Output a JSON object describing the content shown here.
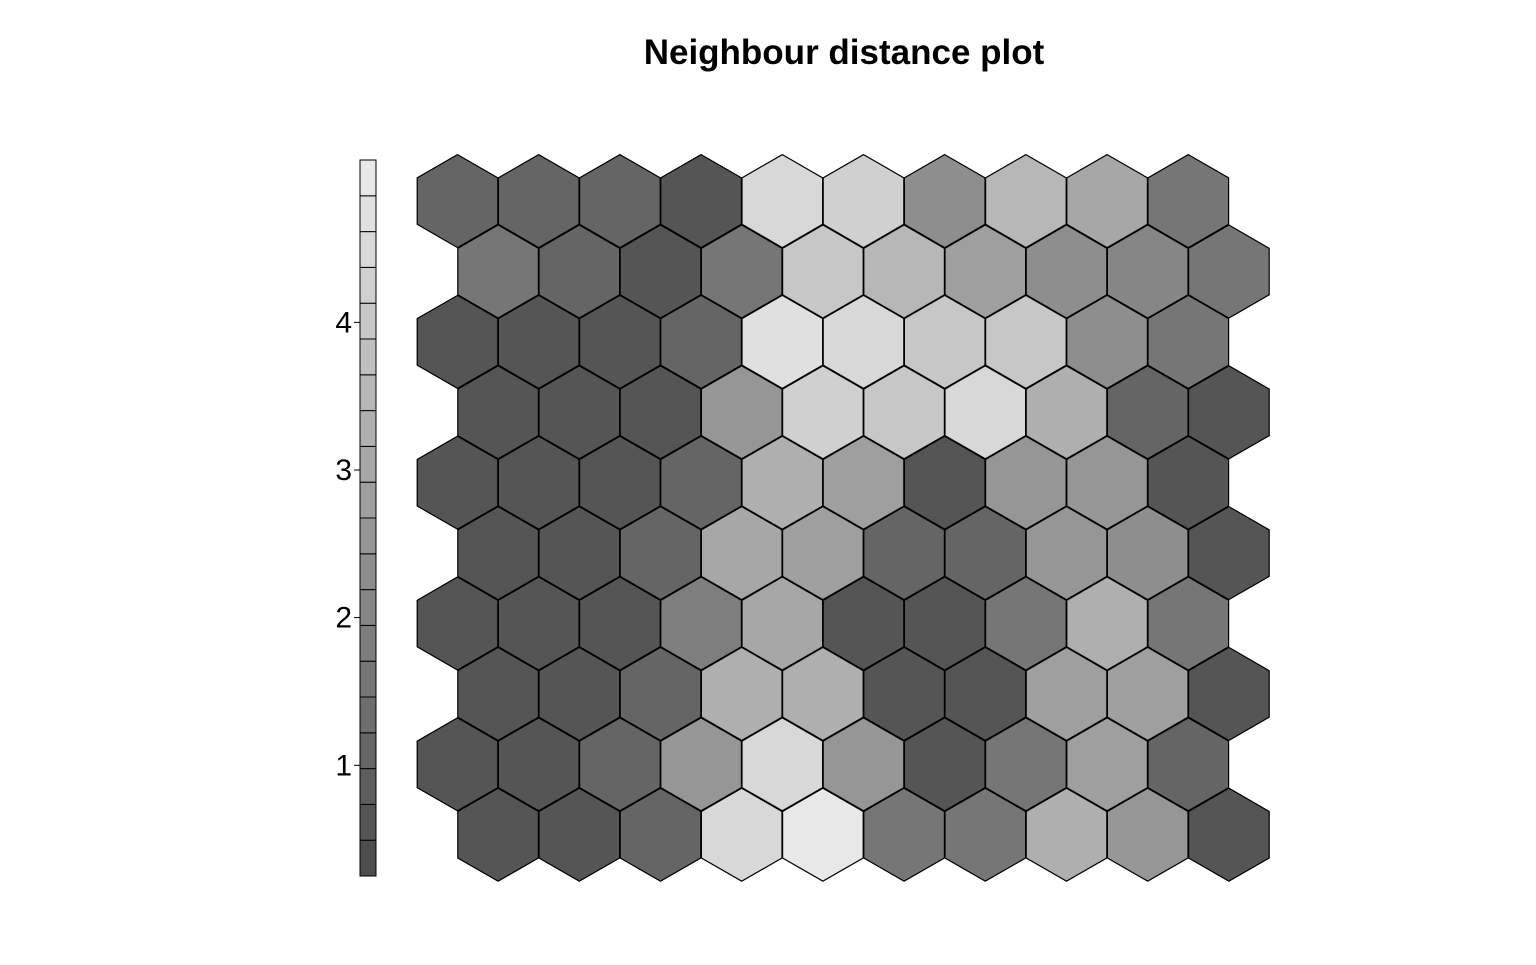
{
  "chart_data": {
    "type": "heatmap",
    "subtype": "hexagonal-som-grid",
    "title": "Neighbour distance plot",
    "grid": {
      "rows": 10,
      "cols": 10,
      "topology": "hexagonal"
    },
    "palette": "grey (dark = low, light = high)",
    "rows_top_to_bottom": [
      [
        1.2,
        1.2,
        1.2,
        0.6,
        4.5,
        4.2,
        2.3,
        3.5,
        3.0,
        1.6
      ],
      [
        1.6,
        1.2,
        0.6,
        1.6,
        4.0,
        3.6,
        2.9,
        2.4,
        2.1,
        1.6
      ],
      [
        0.6,
        0.6,
        0.6,
        1.2,
        4.8,
        4.6,
        4.0,
        4.0,
        2.4,
        1.6
      ],
      [
        0.6,
        0.6,
        0.6,
        2.6,
        4.2,
        4.0,
        4.4,
        3.4,
        1.2,
        0.6
      ],
      [
        0.6,
        0.6,
        0.6,
        1.2,
        3.4,
        2.9,
        0.6,
        2.6,
        2.6,
        0.6
      ],
      [
        0.6,
        0.6,
        1.2,
        3.0,
        2.8,
        1.2,
        1.2,
        2.6,
        2.4,
        0.6
      ],
      [
        0.6,
        0.6,
        0.6,
        1.9,
        3.0,
        0.6,
        0.6,
        1.6,
        3.2,
        1.6
      ],
      [
        0.6,
        0.6,
        1.2,
        3.2,
        3.2,
        0.6,
        0.6,
        2.9,
        2.9,
        0.6
      ],
      [
        0.6,
        0.6,
        1.2,
        2.6,
        4.6,
        2.6,
        0.6,
        1.6,
        2.9,
        1.2
      ],
      [
        0.6,
        0.6,
        1.2,
        4.6,
        4.9,
        1.6,
        1.6,
        3.4,
        2.6,
        0.6
      ]
    ],
    "legend": {
      "ticks": [
        "1",
        "2",
        "3",
        "4"
      ],
      "tick_values": [
        1,
        2,
        3,
        4
      ],
      "range": [
        0.25,
        5.1
      ],
      "steps": 20
    }
  }
}
